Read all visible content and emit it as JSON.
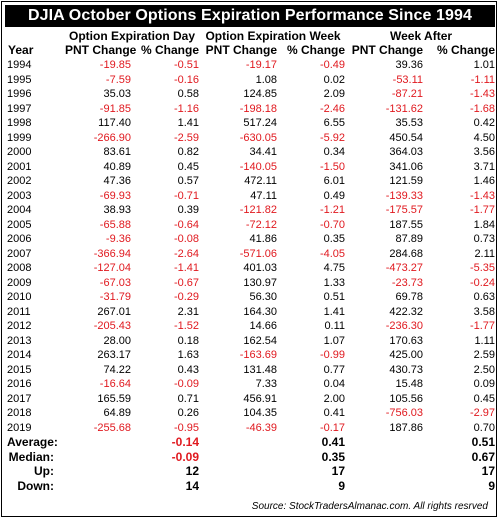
{
  "title": "DJIA October Options Expiration Performance Since 1994",
  "groups": [
    "Option Expiration Day",
    "Option Expiration Week",
    "Week After"
  ],
  "headers": [
    "Year",
    "PNT Change",
    "% Change",
    "PNT Change",
    "% Change",
    "PNT Change",
    "% Change"
  ],
  "rows": [
    [
      "1994",
      "-19.85",
      "-0.51",
      "-19.17",
      "-0.49",
      "39.36",
      "1.01"
    ],
    [
      "1995",
      "-7.59",
      "-0.16",
      "1.08",
      "0.02",
      "-53.11",
      "-1.11"
    ],
    [
      "1996",
      "35.03",
      "0.58",
      "124.85",
      "2.09",
      "-87.21",
      "-1.43"
    ],
    [
      "1997",
      "-91.85",
      "-1.16",
      "-198.18",
      "-2.46",
      "-131.62",
      "-1.68"
    ],
    [
      "1998",
      "117.40",
      "1.41",
      "517.24",
      "6.55",
      "35.53",
      "0.42"
    ],
    [
      "1999",
      "-266.90",
      "-2.59",
      "-630.05",
      "-5.92",
      "450.54",
      "4.50"
    ],
    [
      "2000",
      "83.61",
      "0.82",
      "34.41",
      "0.34",
      "364.03",
      "3.56"
    ],
    [
      "2001",
      "40.89",
      "0.45",
      "-140.05",
      "-1.50",
      "341.06",
      "3.71"
    ],
    [
      "2002",
      "47.36",
      "0.57",
      "472.11",
      "6.01",
      "121.59",
      "1.46"
    ],
    [
      "2003",
      "-69.93",
      "-0.71",
      "47.11",
      "0.49",
      "-139.33",
      "-1.43"
    ],
    [
      "2004",
      "38.93",
      "0.39",
      "-121.82",
      "-1.21",
      "-175.57",
      "-1.77"
    ],
    [
      "2005",
      "-65.88",
      "-0.64",
      "-72.12",
      "-0.70",
      "187.55",
      "1.84"
    ],
    [
      "2006",
      "-9.36",
      "-0.08",
      "41.86",
      "0.35",
      "87.89",
      "0.73"
    ],
    [
      "2007",
      "-366.94",
      "-2.64",
      "-571.06",
      "-4.05",
      "284.68",
      "2.11"
    ],
    [
      "2008",
      "-127.04",
      "-1.41",
      "401.03",
      "4.75",
      "-473.27",
      "-5.35"
    ],
    [
      "2009",
      "-67.03",
      "-0.67",
      "130.97",
      "1.33",
      "-23.73",
      "-0.24"
    ],
    [
      "2010",
      "-31.79",
      "-0.29",
      "56.30",
      "0.51",
      "69.78",
      "0.63"
    ],
    [
      "2011",
      "267.01",
      "2.31",
      "164.30",
      "1.41",
      "422.32",
      "3.58"
    ],
    [
      "2012",
      "-205.43",
      "-1.52",
      "14.66",
      "0.11",
      "-236.30",
      "-1.77"
    ],
    [
      "2013",
      "28.00",
      "0.18",
      "162.54",
      "1.07",
      "170.63",
      "1.11"
    ],
    [
      "2014",
      "263.17",
      "1.63",
      "-163.69",
      "-0.99",
      "425.00",
      "2.59"
    ],
    [
      "2015",
      "74.22",
      "0.43",
      "131.48",
      "0.77",
      "430.73",
      "2.50"
    ],
    [
      "2016",
      "-16.64",
      "-0.09",
      "7.33",
      "0.04",
      "15.48",
      "0.09"
    ],
    [
      "2017",
      "165.59",
      "0.71",
      "456.91",
      "2.00",
      "105.56",
      "0.45"
    ],
    [
      "2018",
      "64.89",
      "0.26",
      "104.35",
      "0.41",
      "-756.03",
      "-2.97"
    ],
    [
      "2019",
      "-255.68",
      "-0.95",
      "-46.39",
      "-0.17",
      "187.86",
      "0.70"
    ]
  ],
  "summary": [
    {
      "label": "Average:",
      "values": [
        "-0.14",
        "0.41",
        "0.51"
      ]
    },
    {
      "label": "Median:",
      "values": [
        "-0.09",
        "0.35",
        "0.67"
      ]
    },
    {
      "label": "Up:",
      "values": [
        "12",
        "17",
        "17"
      ]
    },
    {
      "label": "Down:",
      "values": [
        "14",
        "9",
        "9"
      ]
    }
  ],
  "source": "Source: StockTradersAlmanac.com. All rights resrved",
  "colors": {
    "negative": "#e0191f",
    "positive": "#000000",
    "title_bg": "#000000",
    "title_fg": "#ffffff"
  }
}
